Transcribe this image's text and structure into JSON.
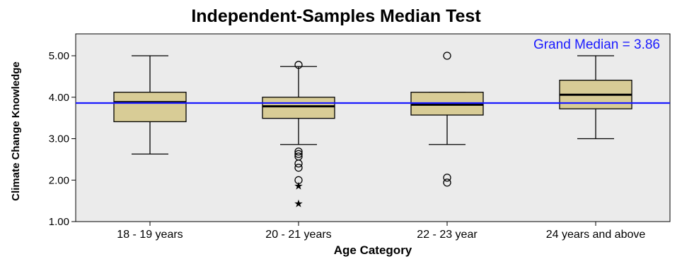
{
  "chart_data": {
    "type": "boxplot",
    "title": "Independent-Samples Median Test",
    "xlabel": "Age Category",
    "ylabel": "Climate Change Knowledge",
    "ylim": [
      1.0,
      5.2
    ],
    "yticks": [
      "1.00",
      "2.00",
      "3.00",
      "4.00",
      "5.00"
    ],
    "yticks_values": [
      1,
      2,
      3,
      4,
      5
    ],
    "categories": [
      "18 - 19 years",
      "20 - 21 years",
      "22 - 23 year",
      "24 years and above"
    ],
    "boxes": [
      {
        "category": "18 - 19 years",
        "whisker_low": 2.63,
        "q1": 3.41,
        "median": 3.88,
        "q3": 4.12,
        "whisker_high": 5.0,
        "outliers": [],
        "extremes": []
      },
      {
        "category": "20 - 21 years",
        "whisker_low": 2.86,
        "q1": 3.49,
        "median": 3.78,
        "q3": 4.0,
        "whisker_high": 4.74,
        "outliers": [
          4.78,
          2.69,
          2.63,
          2.57,
          2.4,
          2.3,
          2.0
        ],
        "extremes": [
          1.88,
          1.45
        ]
      },
      {
        "category": "22 - 23 year",
        "whisker_low": 2.86,
        "q1": 3.57,
        "median": 3.82,
        "q3": 4.12,
        "whisker_high": 4.12,
        "outliers": [
          5.0,
          2.06,
          1.94
        ],
        "extremes": []
      },
      {
        "category": "24 years and above",
        "whisker_low": 3.0,
        "q1": 3.72,
        "median": 4.06,
        "q3": 4.41,
        "whisker_high": 5.0,
        "outliers": [],
        "extremes": []
      }
    ],
    "reference_line": {
      "value": 3.86,
      "label": "Grand Median = 3.86",
      "color": "#1a1aff"
    },
    "box_fill": "#d8cc96",
    "plot_background": "#ebebeb",
    "grid": false
  }
}
